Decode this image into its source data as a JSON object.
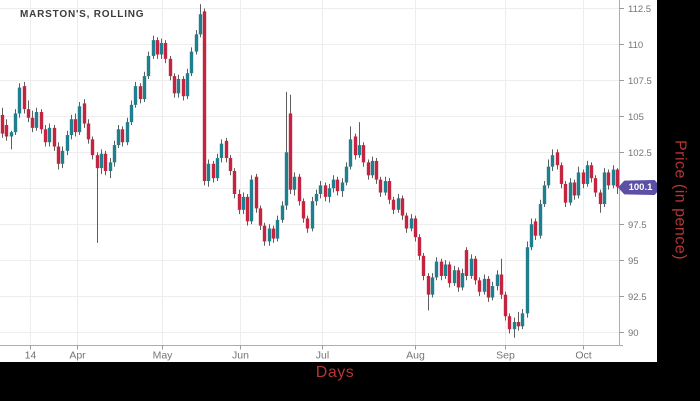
{
  "title": "MARSTON'S, ROLLING",
  "x_axis": {
    "label": "Days",
    "ticks": [
      {
        "label": "14",
        "i": 6.5
      },
      {
        "label": "Apr",
        "i": 17.4
      },
      {
        "label": "May",
        "i": 37.2
      },
      {
        "label": "Jun",
        "i": 55.3
      },
      {
        "label": "Jul",
        "i": 74.4
      },
      {
        "label": "Aug",
        "i": 96.0
      },
      {
        "label": "Sep",
        "i": 117.0
      },
      {
        "label": "Oct",
        "i": 135.1
      }
    ]
  },
  "y_axis": {
    "label": "Price (in pence)",
    "ticks": [
      {
        "label": "112.5",
        "price": 112.5
      },
      {
        "label": "110",
        "price": 110
      },
      {
        "label": "107.5",
        "price": 107.5
      },
      {
        "label": "105",
        "price": 105
      },
      {
        "label": "102.5",
        "price": 102.5
      },
      {
        "label": "",
        "price": 100
      },
      {
        "label": "97.5",
        "price": 97.5
      },
      {
        "label": "95",
        "price": 95
      },
      {
        "label": "92.5",
        "price": 92.5
      },
      {
        "label": "90",
        "price": 90
      }
    ],
    "badge": {
      "text": "100.1",
      "price": 100.1
    }
  },
  "colors": {
    "background": "#000000",
    "plot_background": "#ffffff",
    "grid": "#ededed",
    "axis_line": "#adadad",
    "tick": "#999999",
    "tick_text": "#757575",
    "title_text": "#3c3c3c",
    "up": "#1f7f8e",
    "down": "#c52441",
    "wick": "#5e5e5e",
    "badge_bg": "#5b50a5",
    "axis_title_text": "#b53535"
  },
  "chart_data": {
    "type": "candlestick",
    "title": "MARSTON'S, ROLLING",
    "xlabel": "Days",
    "ylabel": "Price (in pence)",
    "x_tick_labels": [
      "14",
      "Apr",
      "May",
      "Jun",
      "Jul",
      "Aug",
      "Sep",
      "Oct"
    ],
    "ylim": [
      89.1,
      113.09
    ],
    "grid": true,
    "legend": false,
    "last_price": 100.1,
    "candles_ohlc": [
      [
        105.1,
        105.6,
        103.5,
        103.8
      ],
      [
        104.4,
        104.8,
        103.3,
        103.6
      ],
      [
        103.6,
        104.0,
        102.7,
        103.9
      ],
      [
        103.9,
        105.5,
        103.7,
        105.2
      ],
      [
        105.2,
        107.3,
        104.9,
        107.0
      ],
      [
        107.1,
        107.4,
        105.2,
        105.5
      ],
      [
        105.5,
        106.1,
        104.6,
        104.9
      ],
      [
        104.9,
        105.4,
        103.9,
        104.2
      ],
      [
        104.2,
        105.6,
        104.0,
        105.3
      ],
      [
        105.3,
        105.5,
        103.8,
        104.1
      ],
      [
        104.1,
        104.4,
        102.9,
        103.2
      ],
      [
        103.2,
        104.5,
        102.9,
        104.2
      ],
      [
        104.2,
        104.4,
        102.6,
        102.9
      ],
      [
        102.9,
        103.2,
        101.3,
        101.7
      ],
      [
        101.7,
        102.9,
        101.4,
        102.6
      ],
      [
        102.6,
        104.0,
        102.3,
        103.7
      ],
      [
        103.7,
        105.1,
        103.4,
        104.8
      ],
      [
        104.8,
        105.2,
        103.6,
        103.9
      ],
      [
        103.9,
        106.0,
        103.7,
        105.7
      ],
      [
        105.9,
        106.2,
        104.2,
        104.5
      ],
      [
        104.5,
        104.8,
        103.1,
        103.4
      ],
      [
        103.4,
        103.6,
        102.0,
        102.3
      ],
      [
        102.3,
        102.5,
        96.2,
        101.4
      ],
      [
        101.4,
        102.7,
        101.0,
        102.4
      ],
      [
        102.4,
        102.6,
        100.9,
        101.2
      ],
      [
        101.2,
        102.1,
        100.7,
        101.8
      ],
      [
        101.8,
        103.3,
        101.5,
        103.0
      ],
      [
        103.0,
        104.4,
        102.8,
        104.1
      ],
      [
        104.1,
        104.3,
        102.9,
        103.2
      ],
      [
        103.2,
        104.9,
        103.0,
        104.6
      ],
      [
        104.6,
        106.1,
        104.4,
        105.8
      ],
      [
        105.8,
        107.4,
        105.6,
        107.1
      ],
      [
        107.1,
        107.3,
        105.9,
        106.2
      ],
      [
        106.2,
        108.1,
        106.0,
        107.8
      ],
      [
        107.8,
        109.5,
        107.6,
        109.2
      ],
      [
        109.2,
        110.6,
        109.0,
        110.3
      ],
      [
        110.3,
        110.5,
        109.0,
        109.3
      ],
      [
        109.3,
        110.4,
        109.0,
        110.1
      ],
      [
        110.1,
        110.3,
        108.7,
        109.0
      ],
      [
        109.0,
        109.2,
        107.5,
        107.8
      ],
      [
        107.8,
        108.0,
        106.3,
        106.6
      ],
      [
        106.6,
        107.9,
        106.3,
        107.6
      ],
      [
        107.6,
        107.8,
        106.1,
        106.4
      ],
      [
        106.4,
        108.3,
        106.2,
        108.0
      ],
      [
        108.0,
        109.8,
        107.8,
        109.5
      ],
      [
        109.5,
        111.0,
        109.3,
        110.7
      ],
      [
        110.7,
        112.8,
        110.5,
        112.1
      ],
      [
        112.3,
        112.5,
        100.2,
        100.5
      ],
      [
        100.5,
        102.0,
        100.1,
        101.7
      ],
      [
        101.7,
        101.9,
        100.4,
        100.7
      ],
      [
        100.7,
        102.4,
        100.5,
        102.1
      ],
      [
        102.1,
        103.4,
        101.8,
        103.1
      ],
      [
        103.3,
        103.5,
        101.8,
        102.1
      ],
      [
        102.1,
        102.3,
        100.9,
        101.2
      ],
      [
        101.2,
        101.4,
        99.3,
        99.6
      ],
      [
        99.6,
        99.9,
        98.2,
        98.5
      ],
      [
        98.5,
        99.7,
        98.2,
        99.4
      ],
      [
        99.4,
        99.6,
        97.4,
        97.7
      ],
      [
        97.7,
        100.9,
        97.5,
        100.6
      ],
      [
        100.8,
        101.0,
        98.3,
        98.6
      ],
      [
        98.6,
        98.8,
        97.1,
        97.4
      ],
      [
        97.4,
        97.6,
        96.0,
        96.3
      ],
      [
        96.3,
        97.5,
        96.0,
        97.2
      ],
      [
        97.2,
        97.4,
        96.2,
        96.5
      ],
      [
        96.5,
        98.1,
        96.3,
        97.8
      ],
      [
        97.8,
        99.1,
        97.6,
        98.8
      ],
      [
        98.8,
        106.7,
        98.5,
        102.5
      ],
      [
        105.2,
        106.5,
        99.6,
        99.9
      ],
      [
        99.9,
        101.1,
        99.5,
        100.8
      ],
      [
        100.8,
        101.0,
        98.8,
        99.1
      ],
      [
        99.1,
        99.3,
        97.6,
        97.9
      ],
      [
        97.9,
        98.1,
        96.9,
        97.2
      ],
      [
        97.2,
        99.4,
        97.0,
        99.1
      ],
      [
        99.1,
        99.9,
        98.8,
        99.6
      ],
      [
        99.6,
        100.5,
        99.3,
        100.2
      ],
      [
        100.2,
        100.4,
        99.1,
        99.4
      ],
      [
        99.4,
        100.3,
        99.0,
        100.0
      ],
      [
        100.0,
        100.9,
        99.7,
        100.6
      ],
      [
        100.6,
        100.8,
        99.5,
        99.8
      ],
      [
        99.8,
        100.7,
        99.4,
        100.4
      ],
      [
        100.4,
        101.8,
        100.2,
        101.5
      ],
      [
        101.5,
        104.3,
        101.3,
        103.4
      ],
      [
        103.6,
        103.8,
        102.0,
        102.3
      ],
      [
        102.3,
        104.6,
        102.1,
        103.0
      ],
      [
        103.0,
        103.2,
        101.5,
        101.8
      ],
      [
        101.8,
        102.0,
        100.6,
        100.9
      ],
      [
        100.9,
        102.2,
        100.7,
        101.9
      ],
      [
        101.9,
        102.1,
        100.3,
        100.6
      ],
      [
        100.6,
        100.8,
        99.4,
        99.7
      ],
      [
        99.7,
        100.8,
        99.5,
        100.5
      ],
      [
        100.5,
        100.7,
        98.9,
        99.2
      ],
      [
        99.2,
        99.4,
        98.2,
        98.5
      ],
      [
        98.5,
        99.6,
        98.3,
        99.3
      ],
      [
        99.3,
        99.5,
        97.8,
        98.1
      ],
      [
        98.1,
        98.3,
        96.9,
        97.2
      ],
      [
        97.2,
        98.2,
        97.0,
        97.9
      ],
      [
        97.9,
        98.1,
        96.3,
        96.6
      ],
      [
        96.6,
        96.8,
        95.0,
        95.3
      ],
      [
        95.3,
        95.5,
        93.6,
        93.9
      ],
      [
        93.9,
        94.1,
        91.5,
        92.6
      ],
      [
        92.6,
        94.1,
        92.4,
        93.8
      ],
      [
        93.8,
        95.2,
        93.6,
        94.9
      ],
      [
        94.9,
        95.1,
        93.6,
        93.9
      ],
      [
        93.9,
        95.0,
        93.7,
        94.7
      ],
      [
        94.7,
        94.9,
        93.1,
        93.4
      ],
      [
        93.4,
        94.6,
        93.2,
        94.3
      ],
      [
        94.3,
        94.5,
        92.8,
        93.1
      ],
      [
        93.1,
        94.4,
        92.9,
        94.1
      ],
      [
        95.7,
        95.9,
        93.6,
        93.9
      ],
      [
        93.9,
        95.4,
        93.7,
        95.1
      ],
      [
        95.1,
        95.3,
        93.3,
        93.6
      ],
      [
        93.6,
        93.8,
        92.5,
        92.8
      ],
      [
        92.8,
        94.0,
        92.6,
        93.7
      ],
      [
        93.7,
        93.9,
        92.1,
        92.4
      ],
      [
        92.4,
        93.5,
        92.2,
        93.2
      ],
      [
        93.2,
        94.3,
        92.9,
        94.0
      ],
      [
        94.0,
        95.1,
        92.3,
        92.6
      ],
      [
        92.6,
        92.8,
        90.8,
        91.1
      ],
      [
        91.1,
        91.3,
        89.9,
        90.2
      ],
      [
        90.2,
        91.0,
        89.6,
        90.7
      ],
      [
        90.7,
        91.4,
        90.1,
        90.4
      ],
      [
        90.4,
        91.6,
        90.2,
        91.3
      ],
      [
        91.3,
        96.3,
        91.0,
        95.9
      ],
      [
        95.9,
        97.9,
        95.7,
        97.5
      ],
      [
        97.7,
        97.9,
        96.4,
        96.7
      ],
      [
        96.7,
        99.2,
        96.5,
        98.9
      ],
      [
        98.9,
        100.5,
        98.7,
        100.2
      ],
      [
        100.2,
        102.0,
        100.0,
        101.5
      ],
      [
        101.5,
        102.7,
        101.2,
        102.3
      ],
      [
        102.5,
        102.7,
        101.3,
        101.6
      ],
      [
        101.6,
        101.8,
        100.0,
        100.3
      ],
      [
        100.3,
        100.5,
        98.7,
        99.0
      ],
      [
        99.0,
        100.7,
        98.8,
        100.4
      ],
      [
        100.4,
        100.6,
        99.2,
        99.5
      ],
      [
        99.5,
        101.5,
        99.3,
        101.1
      ],
      [
        101.1,
        101.3,
        100.0,
        100.3
      ],
      [
        100.3,
        101.9,
        100.1,
        101.6
      ],
      [
        101.6,
        101.8,
        100.4,
        100.7
      ],
      [
        100.7,
        100.9,
        99.4,
        99.7
      ],
      [
        99.7,
        99.9,
        98.3,
        98.9
      ],
      [
        98.9,
        101.4,
        98.7,
        101.1
      ],
      [
        101.1,
        101.3,
        99.9,
        100.2
      ],
      [
        100.2,
        101.6,
        100.0,
        101.3
      ],
      [
        101.3,
        101.4,
        99.6,
        100.1
      ]
    ]
  }
}
